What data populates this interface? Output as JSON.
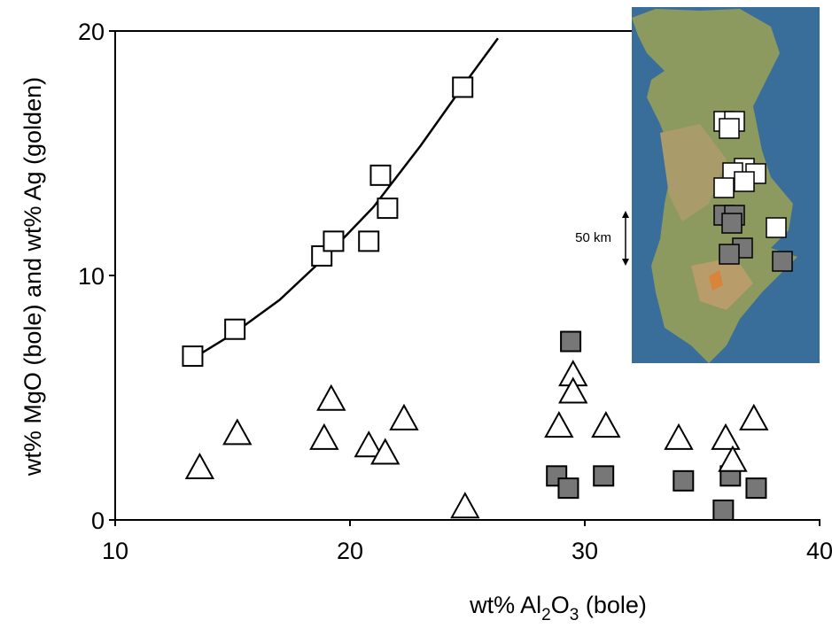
{
  "chart_data": {
    "type": "scatter",
    "xlabel": [
      "wt% Al",
      "2",
      "O",
      "3",
      " (bole)"
    ],
    "ylabel": "wt% MgO (bole) and wt% Ag (golden)",
    "xlim": [
      10,
      40
    ],
    "ylim": [
      0,
      20
    ],
    "xticks": [
      10,
      20,
      30,
      40
    ],
    "yticks": [
      0,
      10,
      20
    ],
    "series": [
      {
        "marker": "square",
        "color": "#ffffff",
        "x": [
          13.3,
          15.1,
          18.8,
          19.3,
          20.8,
          21.6,
          21.3,
          24.8
        ],
        "values": [
          6.7,
          7.8,
          10.8,
          11.4,
          11.4,
          12.75,
          14.1,
          17.7
        ]
      },
      {
        "marker": "square",
        "color": "#777777",
        "x": [
          29.4,
          28.8,
          29.3,
          30.8,
          34.2,
          36.2,
          35.9,
          37.3
        ],
        "values": [
          7.3,
          1.8,
          1.3,
          1.8,
          1.6,
          1.8,
          0.4,
          1.3
        ]
      },
      {
        "marker": "triangle",
        "color": "#ffffff",
        "x": [
          13.6,
          15.2,
          19.2,
          18.9,
          20.8,
          21.5,
          22.3,
          24.9,
          29.5,
          29.5,
          28.9,
          30.9,
          34.0,
          36.0,
          36.3,
          37.2
        ],
        "values": [
          2.1,
          3.5,
          4.9,
          3.3,
          3.0,
          2.7,
          4.1,
          0.5,
          5.9,
          5.2,
          3.8,
          3.8,
          3.3,
          3.3,
          2.4,
          4.1
        ]
      }
    ],
    "curve": {
      "x": [
        13.3,
        15,
        17,
        19,
        21,
        23,
        25,
        26.3
      ],
      "values": [
        6.6,
        7.6,
        9,
        10.8,
        12.8,
        15.3,
        18,
        19.7
      ]
    },
    "map_scale": "50 km"
  }
}
